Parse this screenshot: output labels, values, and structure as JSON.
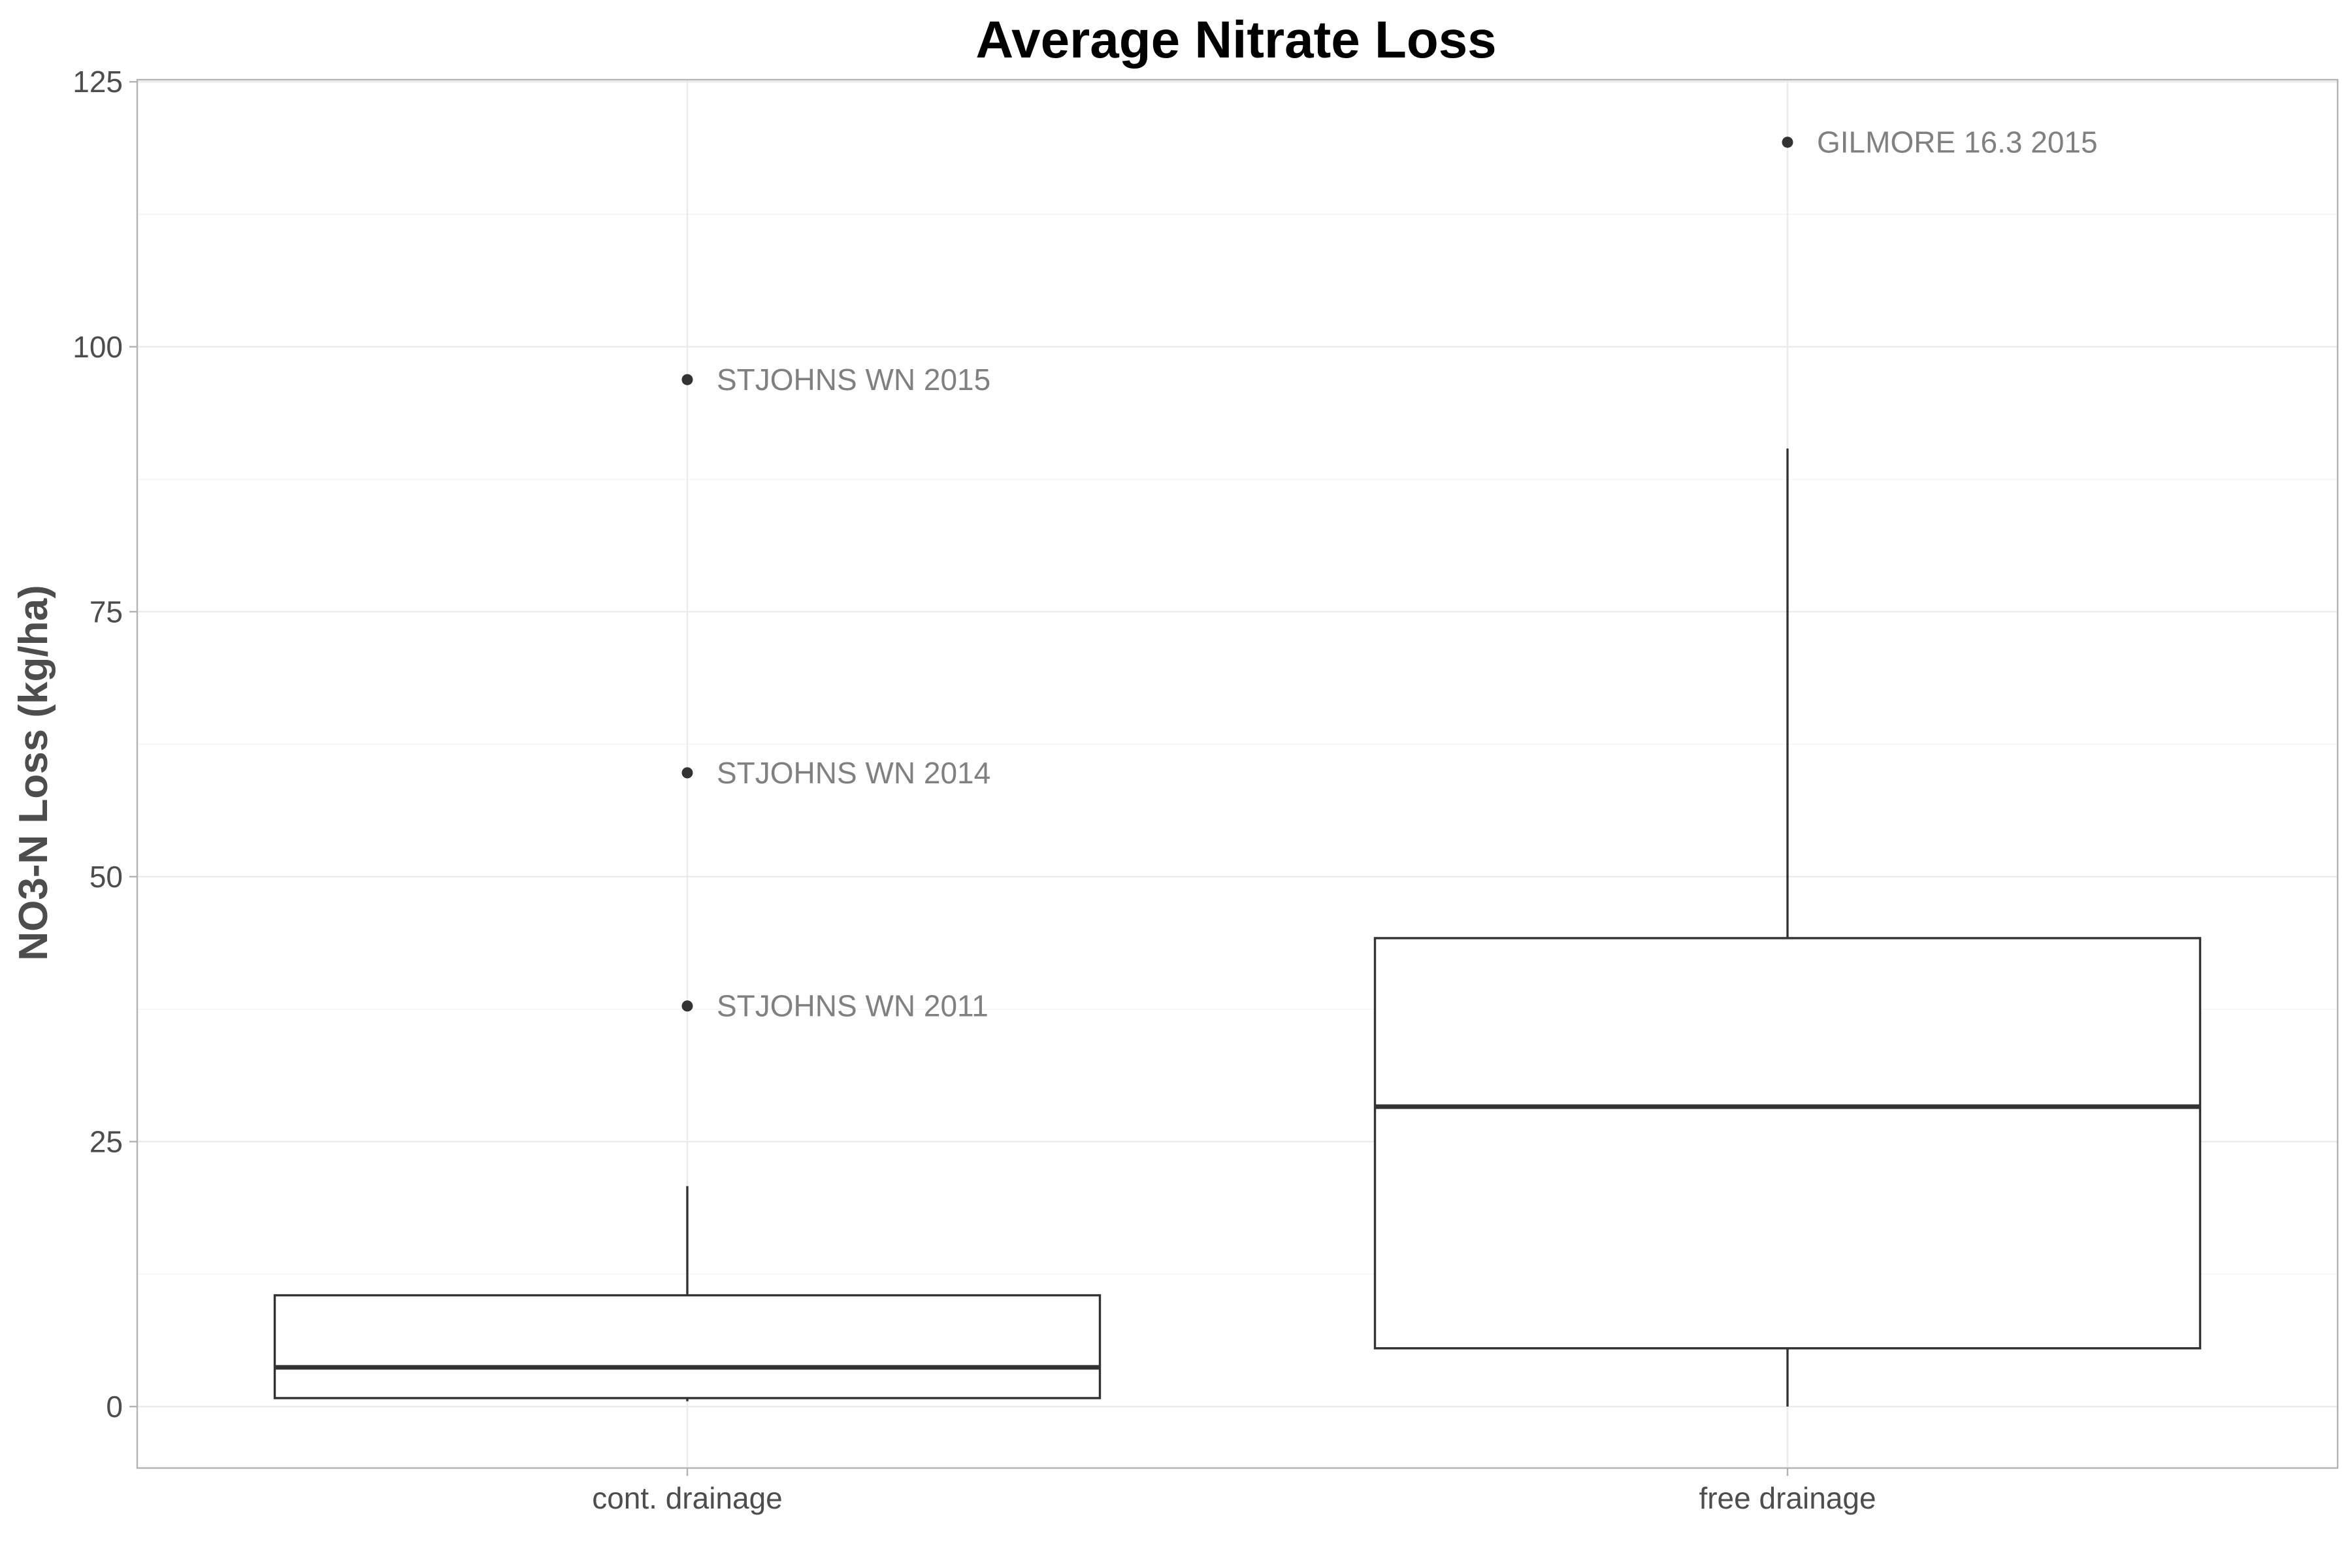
{
  "chart_data": {
    "type": "boxplot",
    "title": "Average Nitrate Loss",
    "xlabel": "",
    "ylabel": "NO3-N Loss (kg/ha)",
    "ylim": [
      -5.8,
      125.2
    ],
    "yticks": [
      0,
      25,
      50,
      75,
      100,
      125
    ],
    "ytick_labels": [
      "0",
      "25",
      "50",
      "75",
      "100",
      "125"
    ],
    "grid": true,
    "categories": [
      "cont. drainage",
      "free drainage"
    ],
    "boxes": [
      {
        "category": "cont. drainage",
        "whisker_low": 0.5,
        "q1": 0.8,
        "median": 3.7,
        "q3": 10.5,
        "whisker_high": 20.8,
        "outliers": [
          {
            "value": 96.9,
            "label": "STJOHNS WN 2015"
          },
          {
            "value": 59.8,
            "label": "STJOHNS WN 2014"
          },
          {
            "value": 37.8,
            "label": "STJOHNS WN 2011"
          }
        ]
      },
      {
        "category": "free drainage",
        "whisker_low": 0.0,
        "q1": 5.5,
        "median": 28.3,
        "q3": 44.2,
        "whisker_high": 90.4,
        "outliers": [
          {
            "value": 119.3,
            "label": "GILMORE 16.3 2015"
          }
        ]
      }
    ]
  }
}
